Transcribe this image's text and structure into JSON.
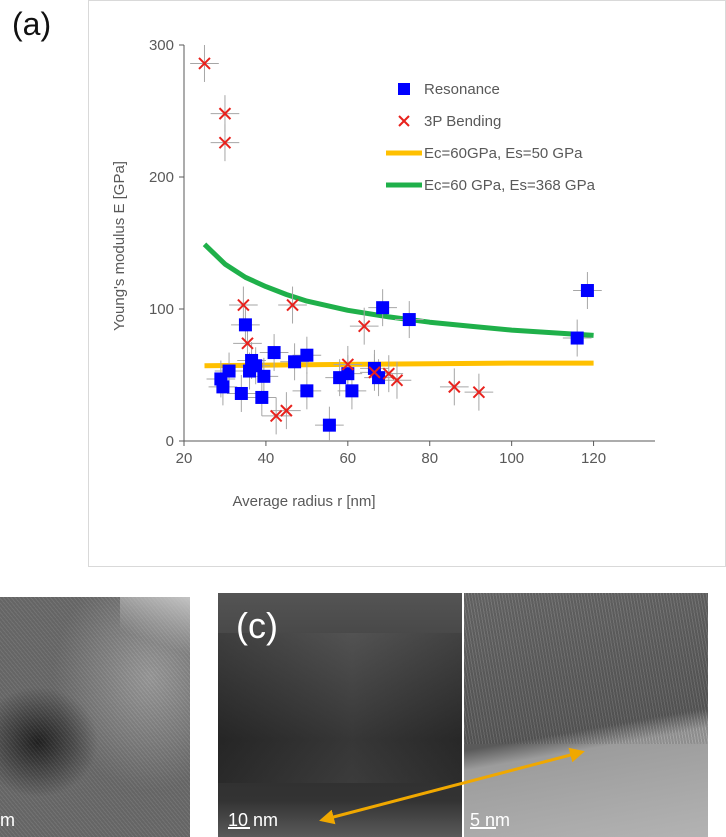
{
  "panel_label_a": "(a)",
  "panel_label_c": "(c)",
  "scale_b": "m",
  "scale_c1": "10 nm",
  "scale_c2": "5 nm",
  "colors": {
    "resonance": "#0000ff",
    "bending": "#e8221d",
    "yellow_line": "#ffc000",
    "green_line": "#1fb04a",
    "arrow": "#f0a800",
    "errorbar": "#a6a6a6"
  },
  "chart_data": {
    "type": "scatter",
    "xlabel": "Average radius r [nm]",
    "ylabel": "Young's modulus E [GPa]",
    "xlim": [
      20,
      135
    ],
    "ylim": [
      0,
      300
    ],
    "xticks": [
      20,
      40,
      60,
      80,
      100,
      120
    ],
    "yticks": [
      0,
      100,
      200,
      300
    ],
    "grid": false,
    "legend_position": "top-right",
    "series": [
      {
        "name": "Resonance",
        "marker": "square",
        "points": [
          {
            "x": 29,
            "y": 47
          },
          {
            "x": 29.5,
            "y": 41
          },
          {
            "x": 31,
            "y": 53
          },
          {
            "x": 34,
            "y": 36
          },
          {
            "x": 35,
            "y": 88
          },
          {
            "x": 36,
            "y": 53
          },
          {
            "x": 36.5,
            "y": 61
          },
          {
            "x": 37.5,
            "y": 57
          },
          {
            "x": 39,
            "y": 33
          },
          {
            "x": 39.5,
            "y": 49
          },
          {
            "x": 42,
            "y": 67
          },
          {
            "x": 47,
            "y": 60
          },
          {
            "x": 50,
            "y": 65
          },
          {
            "x": 50,
            "y": 38
          },
          {
            "x": 55.5,
            "y": 12
          },
          {
            "x": 58,
            "y": 48
          },
          {
            "x": 60,
            "y": 51
          },
          {
            "x": 61,
            "y": 38
          },
          {
            "x": 66.5,
            "y": 55
          },
          {
            "x": 67.5,
            "y": 48
          },
          {
            "x": 68.5,
            "y": 101
          },
          {
            "x": 75,
            "y": 92
          },
          {
            "x": 116,
            "y": 78
          },
          {
            "x": 118.5,
            "y": 114
          }
        ]
      },
      {
        "name": "3P Bending",
        "marker": "x",
        "points": [
          {
            "x": 25,
            "y": 286
          },
          {
            "x": 30,
            "y": 248
          },
          {
            "x": 30,
            "y": 226
          },
          {
            "x": 34.5,
            "y": 103
          },
          {
            "x": 35.5,
            "y": 74
          },
          {
            "x": 42.5,
            "y": 19
          },
          {
            "x": 45,
            "y": 23
          },
          {
            "x": 46.5,
            "y": 103
          },
          {
            "x": 60,
            "y": 58
          },
          {
            "x": 64,
            "y": 87
          },
          {
            "x": 66.5,
            "y": 52
          },
          {
            "x": 70,
            "y": 51
          },
          {
            "x": 72,
            "y": 46
          },
          {
            "x": 86,
            "y": 41
          },
          {
            "x": 92,
            "y": 37
          }
        ]
      },
      {
        "name": "Ec=60GPa, Es=50 GPa",
        "marker": "line",
        "x": [
          25,
          40,
          60,
          80,
          100,
          120
        ],
        "y": [
          57,
          57.5,
          58,
          58.5,
          59,
          59
        ]
      },
      {
        "name": "Ec=60 GPa, Es=368 GPa",
        "marker": "line",
        "x": [
          25,
          30,
          35,
          40,
          45,
          50,
          60,
          70,
          80,
          90,
          100,
          110,
          120
        ],
        "y": [
          149,
          134,
          124,
          117,
          111,
          106,
          99,
          94,
          90,
          87,
          84,
          82,
          80
        ]
      }
    ]
  }
}
